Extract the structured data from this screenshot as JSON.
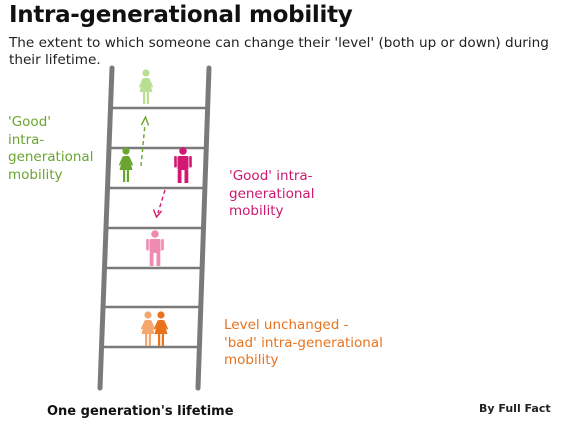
{
  "header": {
    "title": "Intra-generational mobility",
    "subtitle": "The extent to which someone can change their 'level' (both up or down) during their lifetime."
  },
  "annotations": {
    "good_up": "'Good'\nintra-\ngenerational\nmobility",
    "good_down": "'Good' intra-\ngenerational\nmobility",
    "unchanged": "Level unchanged -\n'bad' intra-generational\nmobility"
  },
  "footer": {
    "caption": "One generation's lifetime",
    "credit": "By Full Fact"
  },
  "colors": {
    "ladder": "#7a7a7a",
    "green_light": "#b9df92",
    "green": "#6aa52f",
    "magenta": "#d21872",
    "pink": "#ef8ab0",
    "orange_light": "#f4a66c",
    "orange": "#e8731c"
  },
  "icons": [
    "woman-figure-icon",
    "man-figure-icon",
    "dashed-arrow-up-icon",
    "dashed-arrow-down-icon"
  ]
}
